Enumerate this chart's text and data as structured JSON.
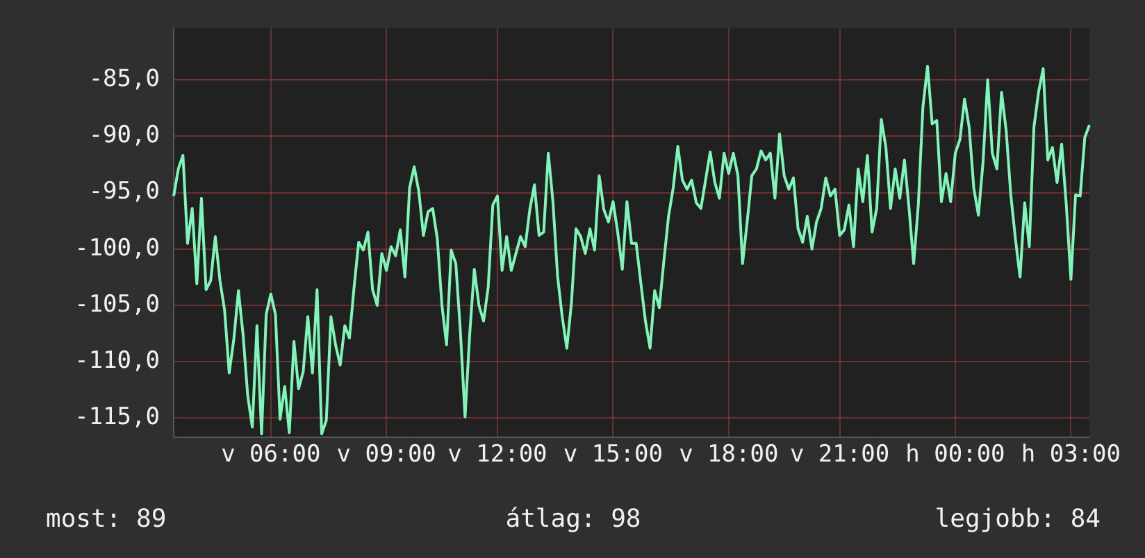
{
  "chart_data": {
    "type": "line",
    "ylim": [
      -116.7,
      -80.4
    ],
    "categories": [
      null,
      null,
      null,
      null,
      null,
      null,
      null,
      null,
      null,
      null,
      null,
      null,
      null,
      null,
      null,
      null,
      null,
      null,
      null,
      null,
      null,
      "v 06:00",
      null,
      null,
      null,
      null,
      null,
      null,
      null,
      null,
      null,
      null,
      null,
      null,
      null,
      null,
      null,
      null,
      null,
      null,
      null,
      null,
      null,
      null,
      null,
      null,
      "v 09:00",
      null,
      null,
      null,
      null,
      null,
      null,
      null,
      null,
      null,
      null,
      null,
      null,
      null,
      null,
      null,
      null,
      null,
      null,
      null,
      null,
      null,
      null,
      null,
      "v 12:00",
      null,
      null,
      null,
      null,
      null,
      null,
      null,
      null,
      null,
      null,
      null,
      null,
      null,
      null,
      null,
      null,
      null,
      null,
      null,
      null,
      null,
      null,
      null,
      null,
      "v 15:00",
      null,
      null,
      null,
      null,
      null,
      null,
      null,
      null,
      null,
      null,
      null,
      null,
      null,
      null,
      null,
      null,
      null,
      null,
      null,
      null,
      null,
      null,
      null,
      null,
      "v 18:00",
      null,
      null,
      null,
      null,
      null,
      null,
      null,
      null,
      null,
      null,
      null,
      null,
      null,
      null,
      null,
      null,
      null,
      null,
      null,
      null,
      null,
      null,
      null,
      "v 21:00",
      null,
      null,
      null,
      null,
      null,
      null,
      null,
      null,
      null,
      null,
      null,
      null,
      null,
      null,
      null,
      null,
      null,
      null,
      null,
      null,
      null,
      null,
      null,
      null,
      "h 00:00",
      null,
      null,
      null,
      null,
      null,
      null,
      null,
      null,
      null,
      null,
      null,
      null,
      null,
      null,
      null,
      null,
      null,
      null,
      null,
      null,
      null,
      null,
      null,
      null,
      "h 03:00",
      null,
      null,
      null,
      null
    ],
    "yticks": [
      {
        "value": -115,
        "label": "-115,0"
      },
      {
        "value": -110,
        "label": "-110,0"
      },
      {
        "value": -105,
        "label": "-105,0"
      },
      {
        "value": -100,
        "label": "-100,0"
      },
      {
        "value": -95,
        "label": "-95,0"
      },
      {
        "value": -90,
        "label": "-90,0"
      },
      {
        "value": -85,
        "label": "-85,0"
      }
    ],
    "grid": true,
    "legend": false,
    "marker": "none",
    "line_style": "solid",
    "annotations": [
      "most: 89",
      "átlag: 98",
      "legjobb: 84"
    ],
    "series": [
      {
        "color": "#7ff5b8",
        "values": [
          -95.3,
          -92.9,
          -91.7,
          -99.5,
          -96.4,
          -103.1,
          -95.5,
          -103.6,
          -102.8,
          -98.9,
          -102.8,
          -105.4,
          -111.0,
          -108.0,
          -103.7,
          -107.6,
          -113.0,
          -115.8,
          -106.8,
          -116.4,
          -105.8,
          -104.0,
          -105.8,
          -115.1,
          -112.2,
          -116.3,
          -108.2,
          -112.4,
          -110.9,
          -106.0,
          -111.0,
          -103.6,
          -116.4,
          -115.2,
          -106.0,
          -108.5,
          -110.3,
          -106.8,
          -107.9,
          -103.4,
          -99.4,
          -100.1,
          -98.5,
          -103.6,
          -105.0,
          -100.4,
          -101.9,
          -99.8,
          -100.6,
          -98.3,
          -102.5,
          -94.6,
          -92.7,
          -94.9,
          -98.8,
          -96.7,
          -96.4,
          -99.1,
          -105.0,
          -108.5,
          -100.1,
          -101.3,
          -107.4,
          -114.9,
          -107.6,
          -101.8,
          -105.0,
          -106.4,
          -103.4,
          -96.1,
          -95.3,
          -101.9,
          -98.9,
          -101.9,
          -100.4,
          -98.9,
          -99.8,
          -96.5,
          -94.3,
          -98.8,
          -98.5,
          -91.5,
          -95.8,
          -102.4,
          -106.0,
          -108.8,
          -104.8,
          -98.2,
          -98.9,
          -100.4,
          -98.2,
          -100.1,
          -93.5,
          -96.5,
          -97.6,
          -95.8,
          -98.5,
          -101.8,
          -95.8,
          -99.5,
          -99.5,
          -103.0,
          -106.4,
          -108.8,
          -103.7,
          -105.2,
          -101.0,
          -97.1,
          -94.6,
          -90.9,
          -93.9,
          -94.7,
          -93.9,
          -95.9,
          -96.4,
          -93.9,
          -91.4,
          -94.1,
          -95.5,
          -91.5,
          -93.3,
          -91.5,
          -93.5,
          -101.3,
          -97.6,
          -93.5,
          -92.9,
          -91.3,
          -92.1,
          -91.5,
          -95.5,
          -89.8,
          -93.5,
          -94.7,
          -93.7,
          -98.2,
          -99.4,
          -97.1,
          -100.0,
          -97.6,
          -96.4,
          -93.7,
          -95.3,
          -94.7,
          -98.8,
          -98.3,
          -96.1,
          -99.8,
          -92.9,
          -95.8,
          -91.7,
          -98.5,
          -96.4,
          -88.5,
          -91.0,
          -96.4,
          -92.9,
          -95.5,
          -92.1,
          -96.4,
          -101.3,
          -96.1,
          -87.4,
          -83.8,
          -88.9,
          -88.6,
          -95.8,
          -93.3,
          -95.8,
          -91.5,
          -90.3,
          -86.7,
          -89.2,
          -94.6,
          -97.0,
          -92.3,
          -85.0,
          -91.5,
          -92.9,
          -86.1,
          -89.5,
          -95.2,
          -99.1,
          -102.5,
          -95.9,
          -99.8,
          -89.2,
          -86.1,
          -84.0,
          -92.1,
          -91.0,
          -94.1,
          -90.7,
          -96.1,
          -102.7,
          -95.2,
          -95.3,
          -90.1,
          -89.0
        ]
      }
    ]
  }
}
